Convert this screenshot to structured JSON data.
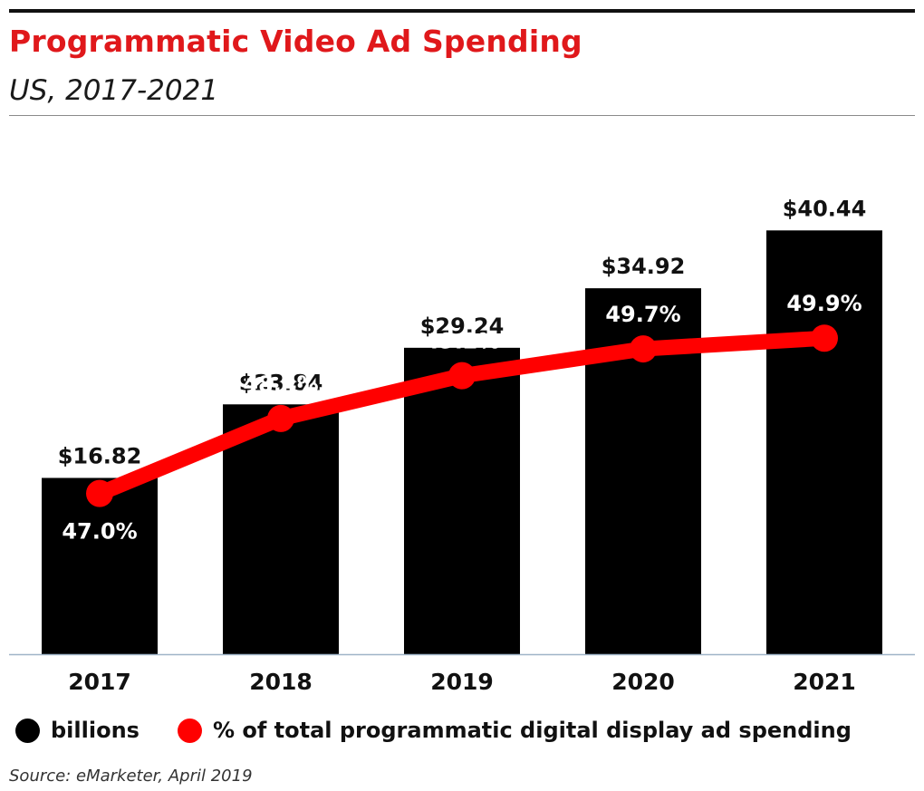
{
  "header": {
    "title": "Programmatic Video Ad Spending",
    "subtitle": "US, 2017-2021"
  },
  "colors": {
    "title": "#e0181b",
    "bar": "#000000",
    "line": "#ff0000",
    "axis": "#9fb4c8"
  },
  "chart_data": {
    "type": "bar",
    "title": "Programmatic Video Ad Spending",
    "subtitle": "US, 2017-2021",
    "categories": [
      "2017",
      "2018",
      "2019",
      "2020",
      "2021"
    ],
    "ylim": [
      0,
      46
    ],
    "y2lim": [
      44,
      53
    ],
    "grid": false,
    "legend_placement": "bottom-left",
    "series": [
      {
        "name": "billions",
        "type": "bar",
        "axis": "left",
        "values": [
          16.82,
          23.84,
          29.24,
          34.92,
          40.44
        ],
        "labels": [
          "$16.82",
          "$23.84",
          "$29.24",
          "$34.92",
          "$40.44"
        ],
        "color": "#000000"
      },
      {
        "name": "% of total programmatic digital display ad spending",
        "type": "line",
        "axis": "right",
        "values": [
          47.0,
          48.4,
          49.2,
          49.7,
          49.9
        ],
        "labels": [
          "47.0%",
          "48.4%",
          "49.2%",
          "49.7%",
          "49.9%"
        ],
        "color": "#ff0000"
      }
    ]
  },
  "legend": {
    "items": [
      {
        "label": "billions",
        "color": "#000000"
      },
      {
        "label": "% of total programmatic digital display ad spending",
        "color": "#ff0000"
      }
    ]
  },
  "source": "Source: eMarketer, April 2019"
}
